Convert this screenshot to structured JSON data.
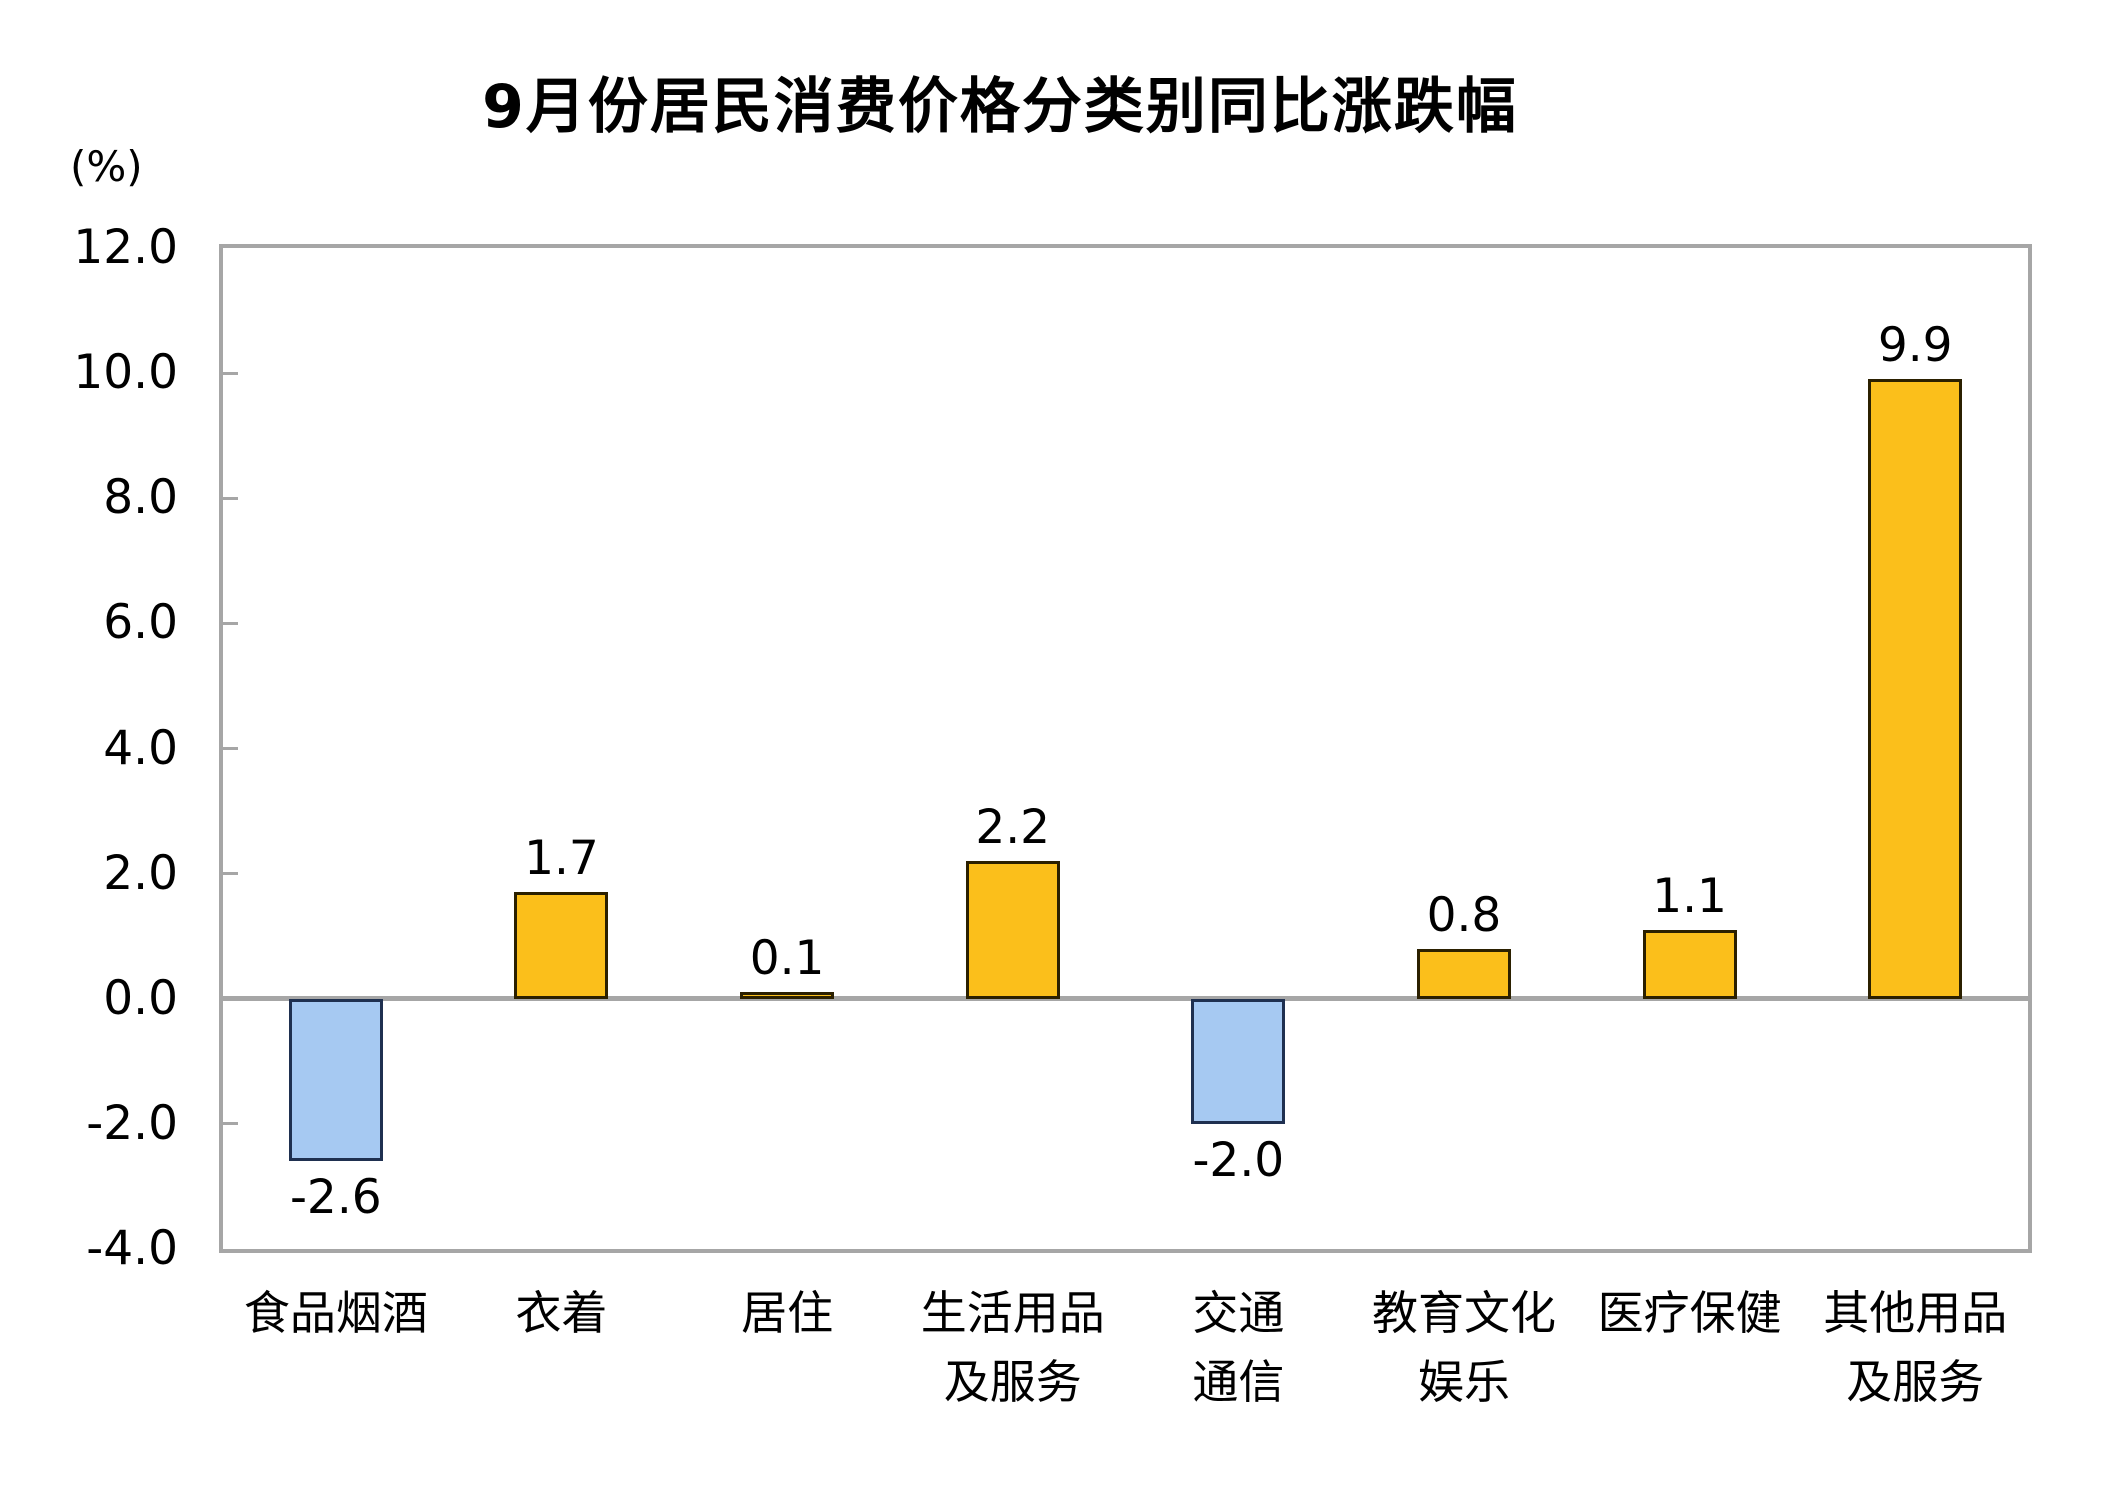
{
  "chart_data": {
    "type": "bar",
    "title": "9月份居民消费价格分类别同比涨跌幅",
    "ylabel": "(%)",
    "xlabel": "",
    "ylim": [
      -4.0,
      12.0
    ],
    "ytick_step": 2.0,
    "ytick_labels": [
      "12.0",
      "10.0",
      "8.0",
      "6.0",
      "4.0",
      "2.0",
      "0.0",
      "-2.0",
      "-4.0"
    ],
    "categories": [
      "食品烟酒",
      "衣着",
      "居住",
      "生活用品及服务",
      "交通通信",
      "教育文化娱乐",
      "医疗保健",
      "其他用品及服务"
    ],
    "category_label_lines": [
      [
        "食品烟酒"
      ],
      [
        "衣着"
      ],
      [
        "居住"
      ],
      [
        "生活用品",
        "及服务"
      ],
      [
        "交通",
        "通信"
      ],
      [
        "教育文化",
        "娱乐"
      ],
      [
        "医疗保健"
      ],
      [
        "其他用品",
        "及服务"
      ]
    ],
    "values": [
      -2.6,
      1.7,
      0.1,
      2.2,
      -2.0,
      0.8,
      1.1,
      9.9
    ],
    "value_labels": [
      "-2.6",
      "1.7",
      "0.1",
      "2.2",
      "-2.0",
      "0.8",
      "1.1",
      "9.9"
    ],
    "grid": false,
    "legend": null,
    "colors": {
      "positive_bar_fill": "#FBBF1B",
      "positive_bar_border": "#2B2000",
      "negative_bar_fill": "#A6C9F2",
      "negative_bar_border": "#1F3050",
      "axis_gray": "#A6A6A6",
      "text": "#000000",
      "background": "#FFFFFF"
    }
  }
}
